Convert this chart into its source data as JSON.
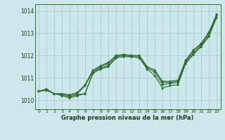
{
  "xlabel": "Graphe pression niveau de la mer (hPa)",
  "background_color": "#cce8ec",
  "grid_color": "#aacccc",
  "line_color": "#2d6a2d",
  "ylim": [
    1009.6,
    1014.3
  ],
  "yticks": [
    1010,
    1011,
    1012,
    1013,
    1014
  ],
  "xticks": [
    0,
    1,
    2,
    3,
    4,
    5,
    6,
    7,
    8,
    9,
    10,
    11,
    12,
    13,
    14,
    15,
    16,
    17,
    18,
    19,
    20,
    21,
    22,
    23
  ],
  "series": [
    [
      1010.4,
      1010.45,
      1010.3,
      1010.25,
      1010.15,
      1010.25,
      1010.3,
      1011.25,
      1011.45,
      1011.55,
      1011.95,
      1012.0,
      1011.95,
      1011.95,
      1011.45,
      1011.25,
      1010.7,
      1010.75,
      1010.8,
      1011.7,
      1012.1,
      1012.45,
      1012.9,
      1013.8
    ],
    [
      1010.4,
      1010.45,
      1010.3,
      1010.2,
      1010.1,
      1010.2,
      1010.3,
      1011.2,
      1011.4,
      1011.5,
      1011.9,
      1011.95,
      1011.95,
      1011.9,
      1011.4,
      1011.1,
      1010.55,
      1010.65,
      1010.7,
      1011.65,
      1012.05,
      1012.4,
      1012.85,
      1013.7
    ],
    [
      1010.4,
      1010.5,
      1010.3,
      1010.25,
      1010.2,
      1010.3,
      1010.65,
      1011.3,
      1011.5,
      1011.65,
      1012.0,
      1012.05,
      1012.0,
      1012.0,
      1011.5,
      1011.35,
      1010.8,
      1010.8,
      1010.85,
      1011.75,
      1012.2,
      1012.5,
      1013.0,
      1013.8
    ],
    [
      1010.4,
      1010.5,
      1010.3,
      1010.3,
      1010.25,
      1010.35,
      1010.7,
      1011.35,
      1011.55,
      1011.7,
      1012.0,
      1012.05,
      1012.0,
      1012.0,
      1011.5,
      1011.35,
      1010.85,
      1010.85,
      1010.9,
      1011.8,
      1012.25,
      1012.55,
      1013.05,
      1013.85
    ]
  ]
}
